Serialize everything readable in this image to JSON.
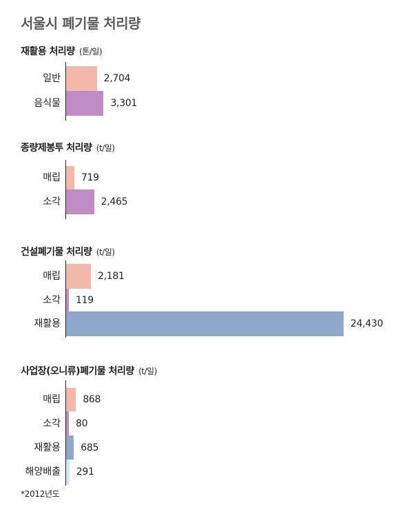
{
  "title": "서울시 폐기물 처리량",
  "footnote": "*2012년도",
  "colors": {
    "매립": "#f4b8a8",
    "일반": "#f4b8a8",
    "음식물": "#c08cc4",
    "소각": "#c08cc4",
    "재활용": "#8fa7cb",
    "해양배출": "#cfe6f5"
  },
  "chart_data": [
    {
      "type": "bar",
      "title": "재활용 처리량",
      "unit": "(톤/일)",
      "categories": [
        "일반",
        "음식물"
      ],
      "values": [
        2704,
        3301
      ],
      "labels": [
        "2,704",
        "3,301"
      ]
    },
    {
      "type": "bar",
      "title": "종량제봉투 처리량",
      "unit": "(t/일)",
      "categories": [
        "매립",
        "소각"
      ],
      "values": [
        719,
        2465
      ],
      "labels": [
        "719",
        "2,465"
      ]
    },
    {
      "type": "bar",
      "title": "건설폐기물 처리량",
      "unit": "(t/일)",
      "categories": [
        "매립",
        "소각",
        "재활용"
      ],
      "values": [
        2181,
        119,
        24430
      ],
      "labels": [
        "2,181",
        "119",
        "24,430"
      ]
    },
    {
      "type": "bar",
      "title": "사업장(오니류)폐기물 처리량",
      "unit": "(t/일)",
      "categories": [
        "매립",
        "소각",
        "재활용",
        "해양배출"
      ],
      "values": [
        868,
        80,
        685,
        291
      ],
      "labels": [
        "868",
        "80",
        "685",
        "291"
      ]
    }
  ]
}
